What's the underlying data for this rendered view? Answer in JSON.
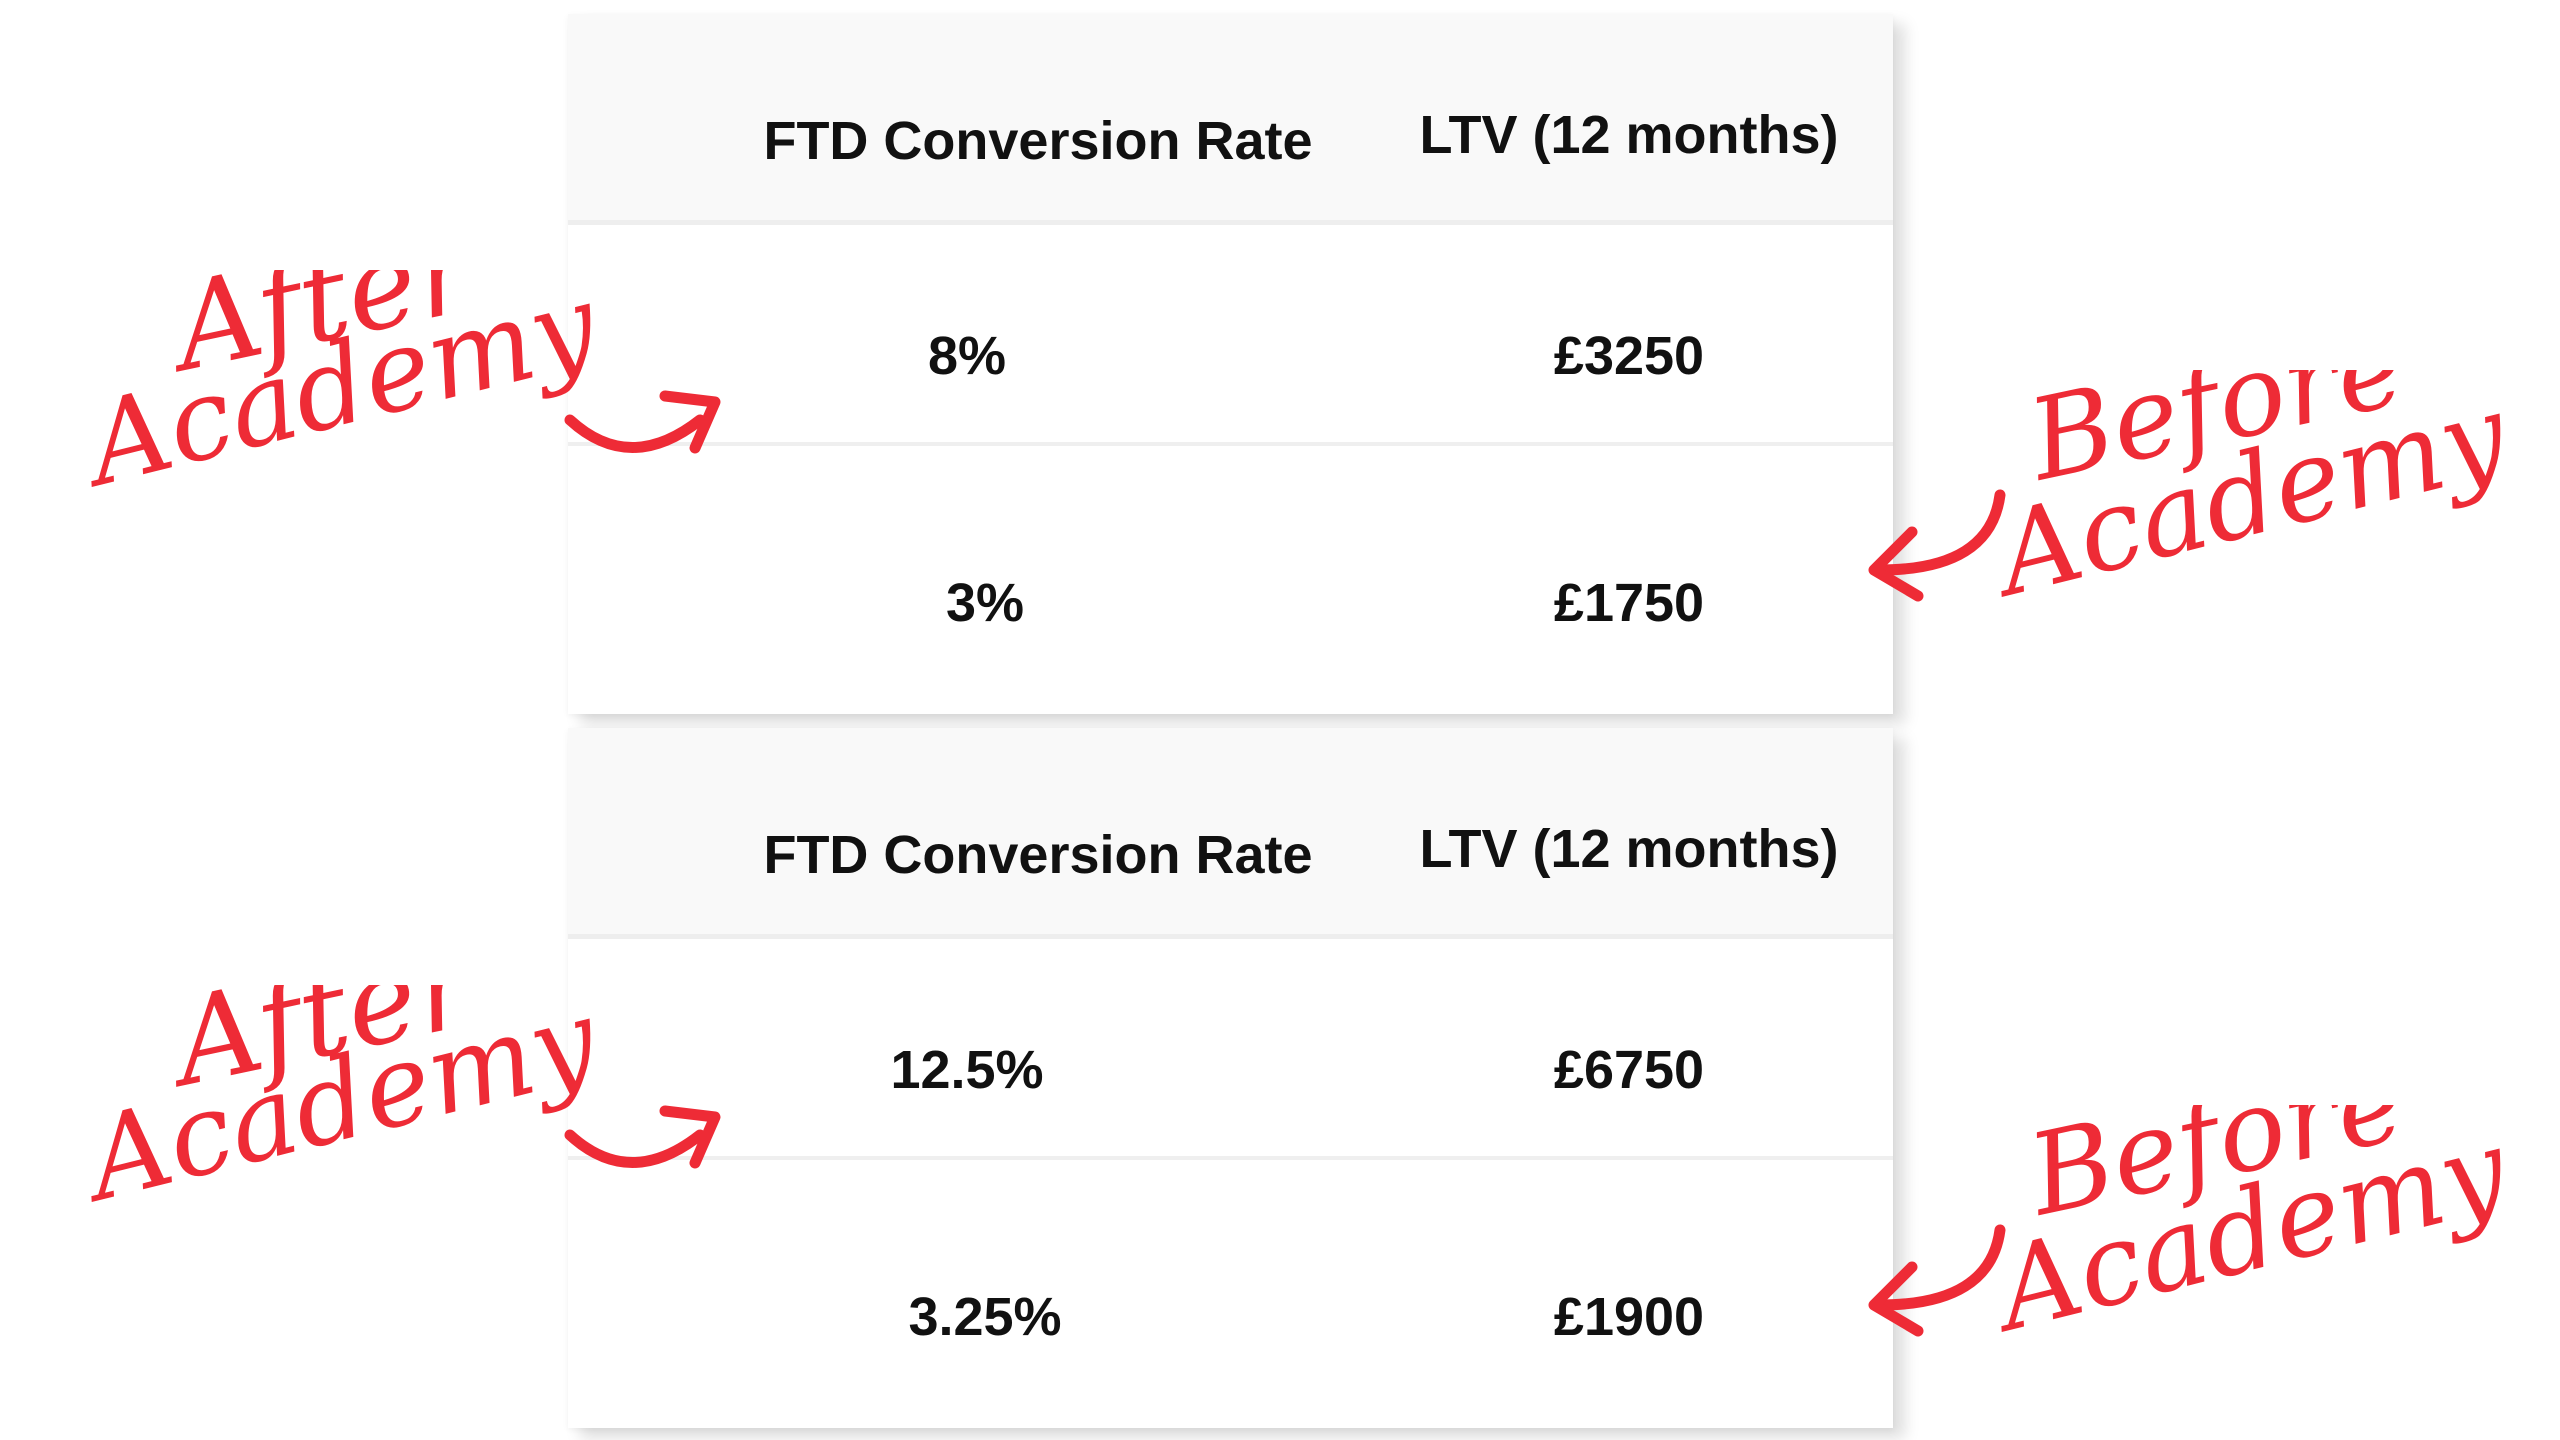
{
  "tables": [
    {
      "headers": {
        "conversion": "FTD Conversion Rate",
        "ltv": "LTV (12 months)"
      },
      "after": {
        "conversion": "8%",
        "ltv": "£3250"
      },
      "before": {
        "conversion": "3%",
        "ltv": "£1750"
      }
    },
    {
      "headers": {
        "conversion": "FTD Conversion Rate",
        "ltv": "LTV (12 months)"
      },
      "after": {
        "conversion": "12.5%",
        "ltv": "£6750"
      },
      "before": {
        "conversion": "3.25%",
        "ltv": "£1900"
      }
    }
  ],
  "annotations": {
    "after": {
      "line1": "After",
      "line2": "Academy"
    },
    "before": {
      "line1": "Before",
      "line2": "Academy"
    },
    "accent_color": "#ee2b36"
  }
}
